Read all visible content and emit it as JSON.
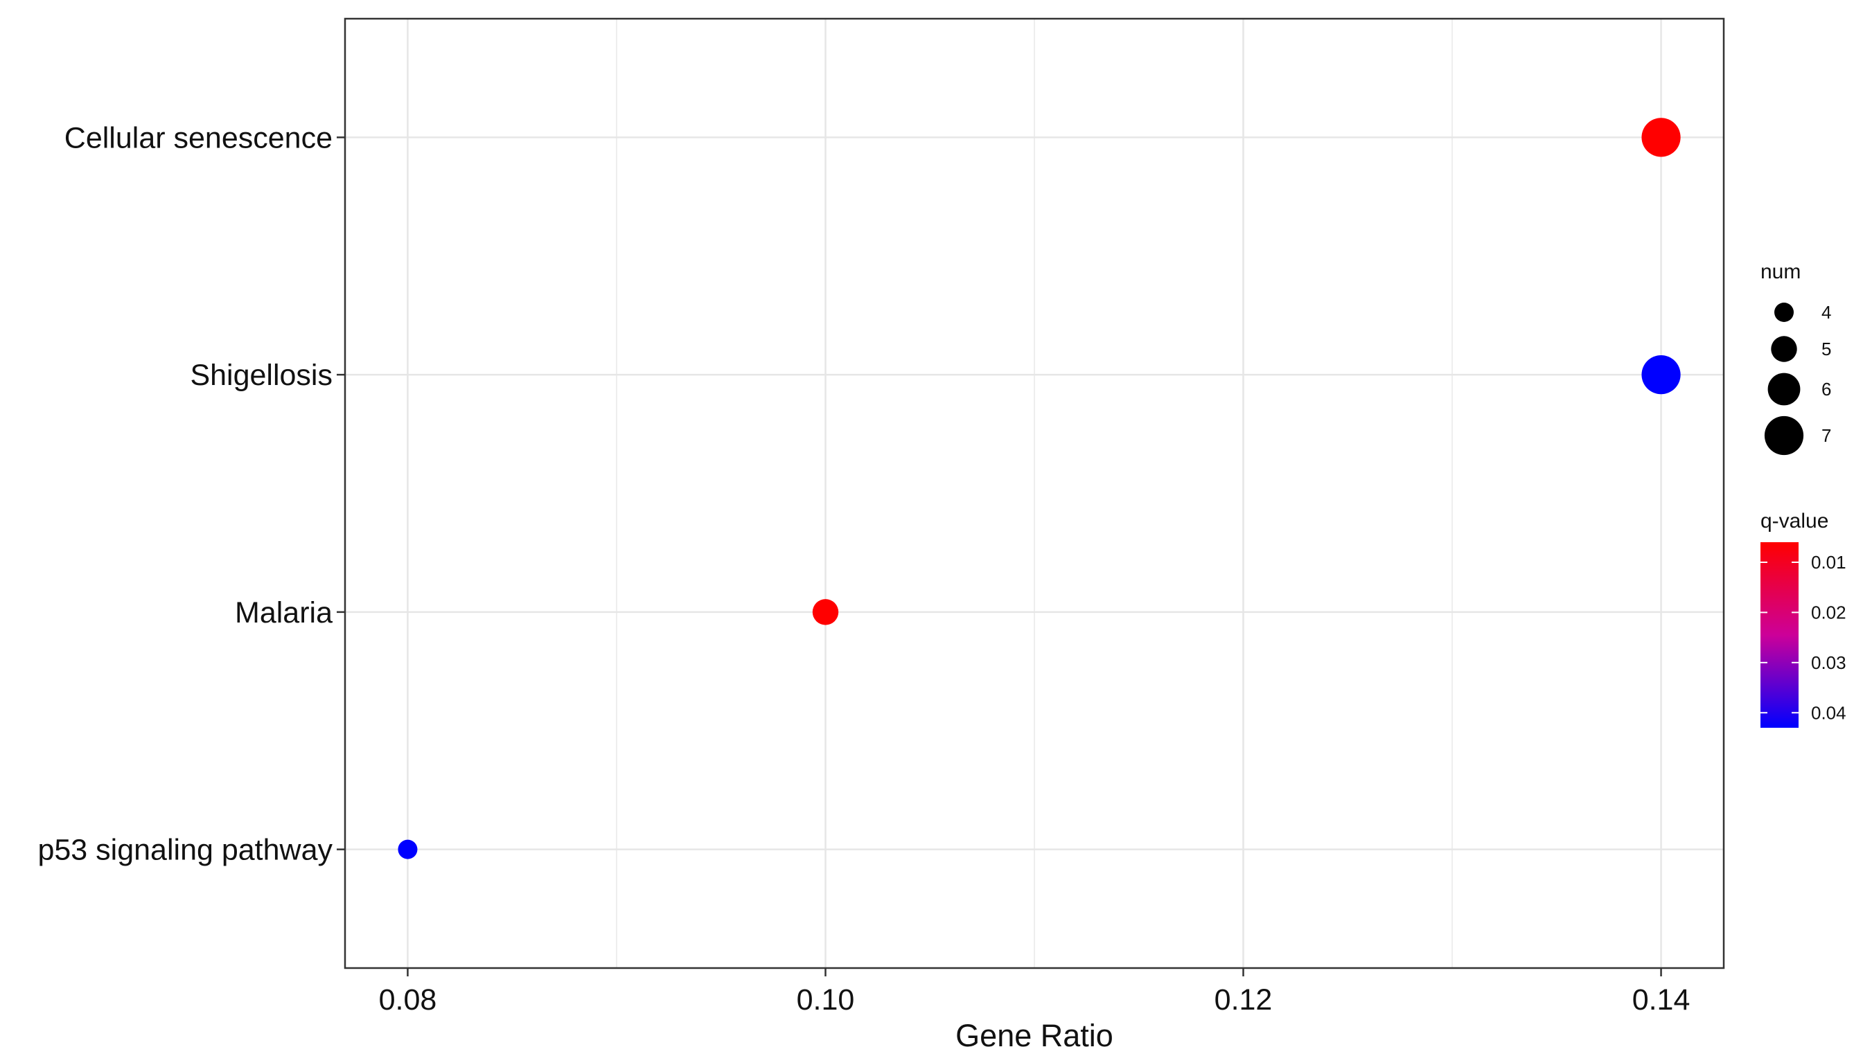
{
  "chart_data": {
    "type": "scatter",
    "title": "",
    "xlabel": "Gene Ratio",
    "ylabel": "",
    "xlim": [
      0.077,
      0.143
    ],
    "x_ticks": [
      "0.08",
      "0.10",
      "0.12",
      "0.14"
    ],
    "categories": [
      "Cellular senescence",
      "Shigellosis",
      "Malaria",
      "p53 signaling pathway"
    ],
    "points": [
      {
        "term": "Cellular senescence",
        "gene_ratio": 0.14,
        "num": 7,
        "q_value": 0.006
      },
      {
        "term": "Shigellosis",
        "gene_ratio": 0.14,
        "num": 7,
        "q_value": 0.043
      },
      {
        "term": "Malaria",
        "gene_ratio": 0.1,
        "num": 5,
        "q_value": 0.006
      },
      {
        "term": "p53 signaling pathway",
        "gene_ratio": 0.08,
        "num": 4,
        "q_value": 0.043
      }
    ],
    "grid": true,
    "legend": {
      "position": "right",
      "size_title": "num",
      "size_breaks": [
        "4",
        "5",
        "6",
        "7"
      ],
      "color_title": "q-value",
      "color_breaks": [
        "0.01",
        "0.02",
        "0.03",
        "0.04"
      ],
      "color_low": "#FF0000",
      "color_high": "#0000FF",
      "q_range": [
        0.006,
        0.043
      ]
    }
  }
}
